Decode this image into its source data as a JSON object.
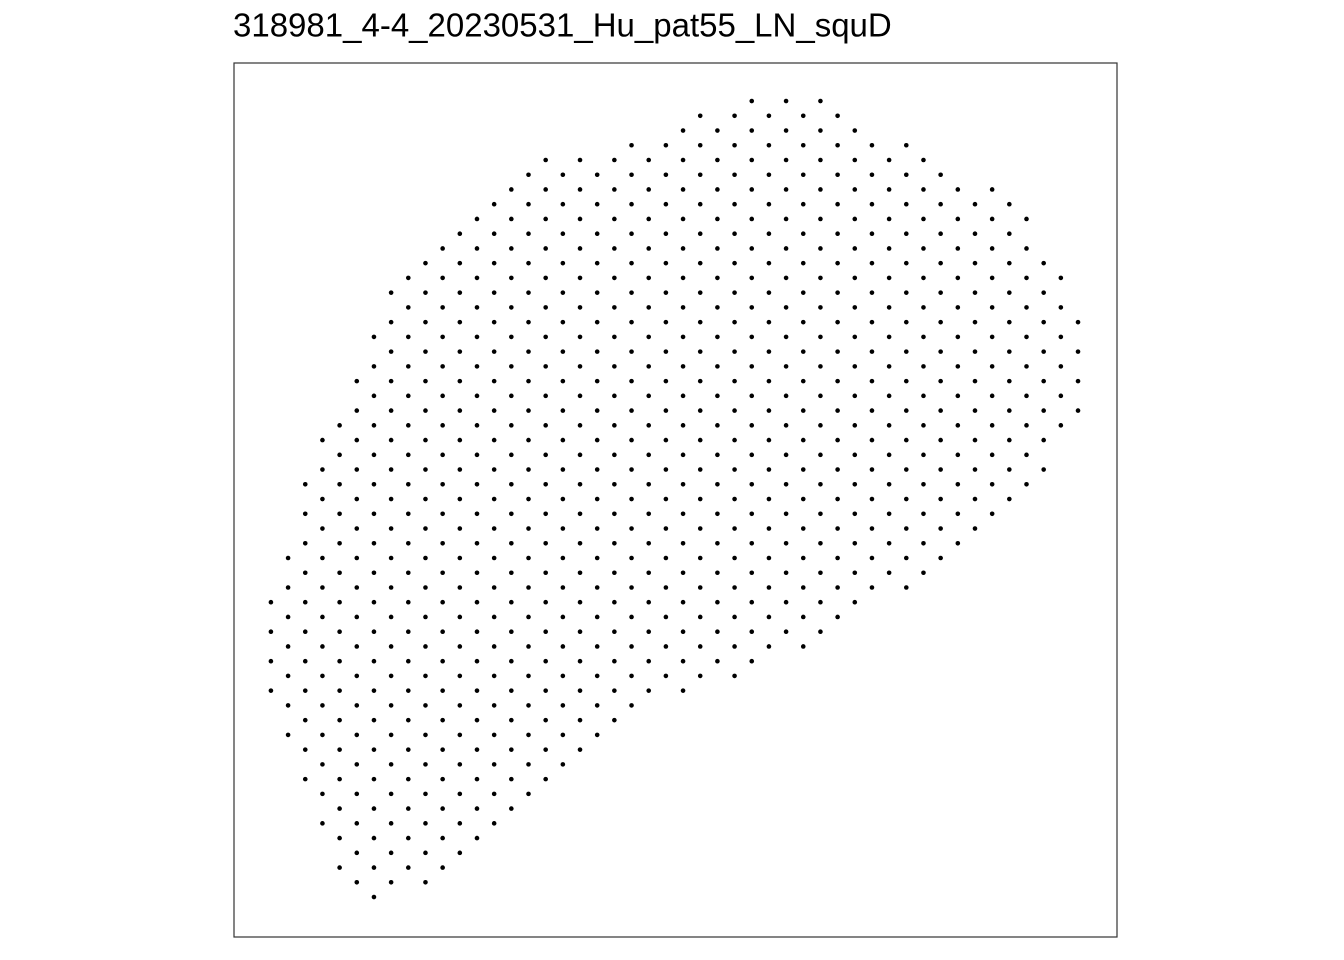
{
  "chart_data": {
    "type": "scatter",
    "title": "318981_4-4_20230531_Hu_pat55_LN_squD",
    "color": "#000000",
    "xlim": [
      -2.15,
      49.27
    ],
    "ylim": [
      -2.58,
      56.71
    ],
    "rows": [
      {
        "y": 0,
        "x": [
          28,
          30,
          32
        ]
      },
      {
        "y": 1,
        "x": [
          25,
          27,
          29,
          31,
          33
        ]
      },
      {
        "y": 2,
        "x": [
          24,
          26,
          28,
          30,
          32,
          34
        ]
      },
      {
        "y": 3,
        "x": [
          21,
          23,
          25,
          27,
          29,
          31,
          33,
          35,
          37
        ]
      },
      {
        "y": 4,
        "x": [
          16,
          18,
          20,
          22,
          24,
          26,
          28,
          30,
          32,
          34,
          36,
          38
        ]
      },
      {
        "y": 5,
        "x": [
          15,
          17,
          19,
          21,
          23,
          25,
          27,
          29,
          31,
          33,
          35,
          37,
          39
        ]
      },
      {
        "y": 6,
        "x": [
          14,
          16,
          18,
          20,
          22,
          24,
          26,
          28,
          30,
          32,
          34,
          36,
          38,
          40,
          42
        ]
      },
      {
        "y": 7,
        "x": [
          13,
          15,
          17,
          19,
          21,
          23,
          25,
          27,
          29,
          31,
          33,
          35,
          37,
          39,
          41,
          43
        ]
      },
      {
        "y": 8,
        "x": [
          12,
          14,
          16,
          18,
          20,
          22,
          24,
          26,
          28,
          30,
          32,
          34,
          36,
          38,
          40,
          42,
          44
        ]
      },
      {
        "y": 9,
        "x": [
          11,
          13,
          15,
          17,
          19,
          21,
          23,
          25,
          27,
          29,
          31,
          33,
          35,
          37,
          39,
          41,
          43
        ]
      },
      {
        "y": 10,
        "x": [
          10,
          12,
          14,
          16,
          18,
          20,
          22,
          24,
          26,
          28,
          30,
          32,
          34,
          36,
          38,
          40,
          42,
          44
        ]
      },
      {
        "y": 11,
        "x": [
          9,
          11,
          13,
          15,
          17,
          19,
          21,
          23,
          25,
          27,
          29,
          31,
          33,
          35,
          37,
          39,
          41,
          43,
          45
        ]
      },
      {
        "y": 12,
        "x": [
          8,
          10,
          12,
          14,
          16,
          18,
          20,
          22,
          24,
          26,
          28,
          30,
          32,
          34,
          36,
          38,
          40,
          42,
          44,
          46
        ]
      },
      {
        "y": 13,
        "x": [
          7,
          9,
          11,
          13,
          15,
          17,
          19,
          21,
          23,
          25,
          27,
          29,
          31,
          33,
          35,
          37,
          39,
          41,
          43,
          45
        ]
      },
      {
        "y": 14,
        "x": [
          8,
          10,
          12,
          14,
          16,
          18,
          20,
          22,
          24,
          26,
          28,
          30,
          32,
          34,
          36,
          38,
          40,
          42,
          44,
          46
        ]
      },
      {
        "y": 15,
        "x": [
          7,
          9,
          11,
          13,
          15,
          17,
          19,
          21,
          23,
          25,
          27,
          29,
          31,
          33,
          35,
          37,
          39,
          41,
          43,
          45,
          47
        ]
      },
      {
        "y": 16,
        "x": [
          6,
          8,
          10,
          12,
          14,
          16,
          18,
          20,
          22,
          24,
          26,
          28,
          30,
          32,
          34,
          36,
          38,
          40,
          42,
          44,
          46
        ]
      },
      {
        "y": 17,
        "x": [
          7,
          9,
          11,
          13,
          15,
          17,
          19,
          21,
          23,
          25,
          27,
          29,
          31,
          33,
          35,
          37,
          39,
          41,
          43,
          45,
          47
        ]
      },
      {
        "y": 18,
        "x": [
          6,
          8,
          10,
          12,
          14,
          16,
          18,
          20,
          22,
          24,
          26,
          28,
          30,
          32,
          34,
          36,
          38,
          40,
          42,
          44,
          46
        ]
      },
      {
        "y": 19,
        "x": [
          5,
          7,
          9,
          11,
          13,
          15,
          17,
          19,
          21,
          23,
          25,
          27,
          29,
          31,
          33,
          35,
          37,
          39,
          41,
          43,
          45,
          47
        ]
      },
      {
        "y": 20,
        "x": [
          6,
          8,
          10,
          12,
          14,
          16,
          18,
          20,
          22,
          24,
          26,
          28,
          30,
          32,
          34,
          36,
          38,
          40,
          42,
          44,
          46
        ]
      },
      {
        "y": 21,
        "x": [
          5,
          7,
          9,
          11,
          13,
          15,
          17,
          19,
          21,
          23,
          25,
          27,
          29,
          31,
          33,
          35,
          37,
          39,
          41,
          43,
          45,
          47
        ]
      },
      {
        "y": 22,
        "x": [
          4,
          6,
          8,
          10,
          12,
          14,
          16,
          18,
          20,
          22,
          24,
          26,
          28,
          30,
          32,
          34,
          36,
          38,
          40,
          42,
          44,
          46
        ]
      },
      {
        "y": 23,
        "x": [
          3,
          5,
          7,
          9,
          11,
          13,
          15,
          17,
          19,
          21,
          23,
          25,
          27,
          29,
          31,
          33,
          35,
          37,
          39,
          41,
          43,
          45
        ]
      },
      {
        "y": 24,
        "x": [
          4,
          6,
          8,
          10,
          12,
          14,
          16,
          18,
          20,
          22,
          24,
          26,
          28,
          30,
          32,
          34,
          36,
          38,
          40,
          42,
          44
        ]
      },
      {
        "y": 25,
        "x": [
          3,
          5,
          7,
          9,
          11,
          13,
          15,
          17,
          19,
          21,
          23,
          25,
          27,
          29,
          31,
          33,
          35,
          37,
          39,
          41,
          43,
          45
        ]
      },
      {
        "y": 26,
        "x": [
          2,
          4,
          6,
          8,
          10,
          12,
          14,
          16,
          18,
          20,
          22,
          24,
          26,
          28,
          30,
          32,
          34,
          36,
          38,
          40,
          42,
          44
        ]
      },
      {
        "y": 27,
        "x": [
          3,
          5,
          7,
          9,
          11,
          13,
          15,
          17,
          19,
          21,
          23,
          25,
          27,
          29,
          31,
          33,
          35,
          37,
          39,
          41,
          43
        ]
      },
      {
        "y": 28,
        "x": [
          2,
          4,
          6,
          8,
          10,
          12,
          14,
          16,
          18,
          20,
          22,
          24,
          26,
          28,
          30,
          32,
          34,
          36,
          38,
          40,
          42
        ]
      },
      {
        "y": 29,
        "x": [
          3,
          5,
          7,
          9,
          11,
          13,
          15,
          17,
          19,
          21,
          23,
          25,
          27,
          29,
          31,
          33,
          35,
          37,
          39,
          41
        ]
      },
      {
        "y": 30,
        "x": [
          2,
          4,
          6,
          8,
          10,
          12,
          14,
          16,
          18,
          20,
          22,
          24,
          26,
          28,
          30,
          32,
          34,
          36,
          38,
          40
        ]
      },
      {
        "y": 31,
        "x": [
          1,
          3,
          5,
          7,
          9,
          11,
          13,
          15,
          17,
          19,
          21,
          23,
          25,
          27,
          29,
          31,
          33,
          35,
          37,
          39
        ]
      },
      {
        "y": 32,
        "x": [
          2,
          4,
          6,
          8,
          10,
          12,
          14,
          16,
          18,
          20,
          22,
          24,
          26,
          28,
          30,
          32,
          34,
          36,
          38
        ]
      },
      {
        "y": 33,
        "x": [
          1,
          3,
          5,
          7,
          9,
          11,
          13,
          15,
          17,
          19,
          21,
          23,
          25,
          27,
          29,
          31,
          33,
          35,
          37
        ]
      },
      {
        "y": 34,
        "x": [
          0,
          2,
          4,
          6,
          8,
          10,
          12,
          14,
          16,
          18,
          20,
          22,
          24,
          26,
          28,
          30,
          32,
          34
        ]
      },
      {
        "y": 35,
        "x": [
          1,
          3,
          5,
          7,
          9,
          11,
          13,
          15,
          17,
          19,
          21,
          23,
          25,
          27,
          29,
          31,
          33
        ]
      },
      {
        "y": 36,
        "x": [
          0,
          2,
          4,
          6,
          8,
          10,
          12,
          14,
          16,
          18,
          20,
          22,
          24,
          26,
          28,
          30,
          32
        ]
      },
      {
        "y": 37,
        "x": [
          1,
          3,
          5,
          7,
          9,
          11,
          13,
          15,
          17,
          19,
          21,
          23,
          25,
          27,
          29,
          31
        ]
      },
      {
        "y": 38,
        "x": [
          0,
          2,
          4,
          6,
          8,
          10,
          12,
          14,
          16,
          18,
          20,
          22,
          24,
          26,
          28
        ]
      },
      {
        "y": 39,
        "x": [
          1,
          3,
          5,
          7,
          9,
          11,
          13,
          15,
          17,
          19,
          21,
          23,
          25,
          27
        ]
      },
      {
        "y": 40,
        "x": [
          0,
          2,
          4,
          6,
          8,
          10,
          12,
          14,
          16,
          18,
          20,
          22,
          24
        ]
      },
      {
        "y": 41,
        "x": [
          1,
          3,
          5,
          7,
          9,
          11,
          13,
          15,
          17,
          19,
          21
        ]
      },
      {
        "y": 42,
        "x": [
          2,
          4,
          6,
          8,
          10,
          12,
          14,
          16,
          18,
          20
        ]
      },
      {
        "y": 43,
        "x": [
          1,
          3,
          5,
          7,
          9,
          11,
          13,
          15,
          17,
          19
        ]
      },
      {
        "y": 44,
        "x": [
          2,
          4,
          6,
          8,
          10,
          12,
          14,
          16,
          18
        ]
      },
      {
        "y": 45,
        "x": [
          3,
          5,
          7,
          9,
          11,
          13,
          15,
          17
        ]
      },
      {
        "y": 46,
        "x": [
          2,
          4,
          6,
          8,
          10,
          12,
          14,
          16
        ]
      },
      {
        "y": 47,
        "x": [
          3,
          5,
          7,
          9,
          11,
          13,
          15
        ]
      },
      {
        "y": 48,
        "x": [
          4,
          6,
          8,
          10,
          12,
          14
        ]
      },
      {
        "y": 49,
        "x": [
          3,
          5,
          7,
          9,
          11,
          13
        ]
      },
      {
        "y": 50,
        "x": [
          4,
          6,
          8,
          10,
          12
        ]
      },
      {
        "y": 51,
        "x": [
          5,
          7,
          9,
          11
        ]
      },
      {
        "y": 52,
        "x": [
          4,
          6,
          8,
          10
        ]
      },
      {
        "y": 53,
        "x": [
          5,
          7,
          9
        ]
      },
      {
        "y": 54,
        "x": [
          6
        ]
      }
    ]
  }
}
